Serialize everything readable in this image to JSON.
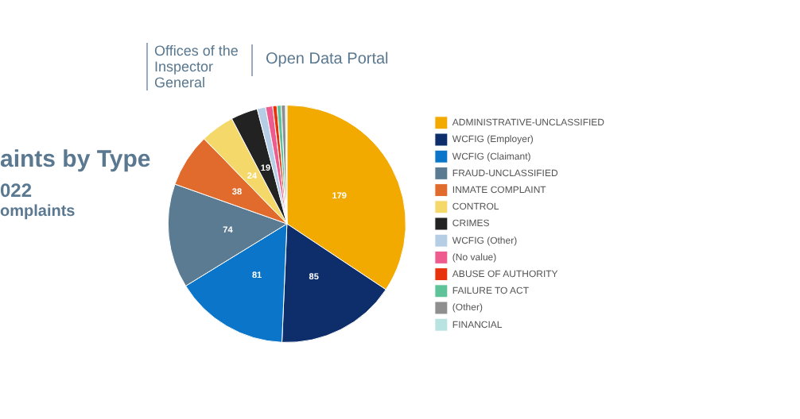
{
  "chart_data": {
    "type": "pie",
    "title": "aints by Type",
    "subtitle": "022",
    "annotations": [
      "omplaints",
      "Offices of the Inspector General",
      "Open Data Portal"
    ],
    "categories": [
      "ADMINISTRATIVE-UNCLASSIFIED",
      "WCFIG (Employer)",
      "WCFIG (Claimant)",
      "FRAUD-UNCLASSIFIED",
      "INMATE COMPLAINT",
      "CONTROL",
      "CRIMES",
      "WCFIG (Other)",
      "(No value)",
      "ABUSE OF AUTHORITY",
      "FAILURE TO ACT",
      "(Other)",
      "FINANCIAL"
    ],
    "values": [
      179,
      85,
      81,
      74,
      38,
      24,
      19,
      6,
      5,
      3,
      3,
      3,
      1
    ],
    "value_labels": [
      "179",
      "85",
      "81",
      "74",
      "38",
      "24",
      "19",
      null,
      null,
      null,
      null,
      null,
      null
    ],
    "colors": [
      "#f2a900",
      "#0d2d6b",
      "#0a75c9",
      "#5b7b93",
      "#e06b2c",
      "#f5d86a",
      "#222222",
      "#b6cde6",
      "#ee5b8e",
      "#e8320c",
      "#5fc39a",
      "#8f8f8f",
      "#b8e3e0"
    ],
    "legend": "right"
  }
}
